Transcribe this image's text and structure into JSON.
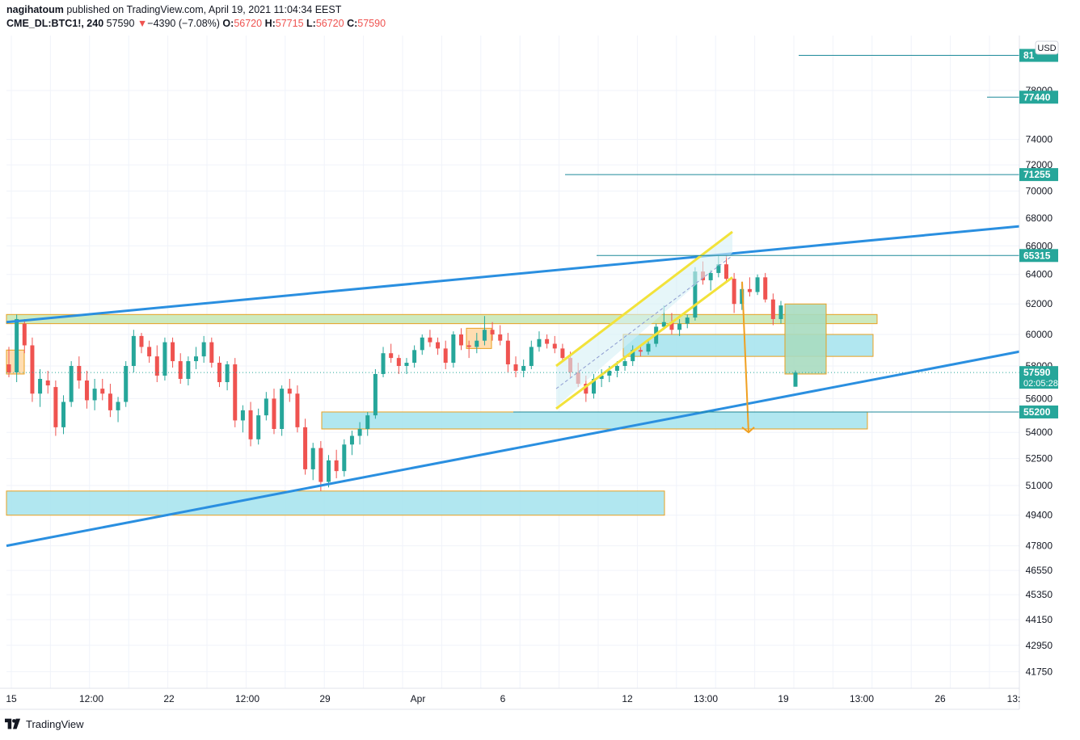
{
  "header": {
    "author": "nagihatoum",
    "published_text": "published on TradingView.com, April 19, 2021 11:04:34 EEST",
    "symbol": "CME_DL:BTC1!, 240",
    "last": "57590",
    "change_arrow": "▼",
    "change": "−4390 (−7.08%)",
    "o_label": "O:",
    "o_value": "56720",
    "h_label": "H:",
    "h_value": "57715",
    "l_label": "L:",
    "l_value": "56720",
    "c_label": "C:",
    "c_value": "57590"
  },
  "currency_label": "USD",
  "price_tags": [
    {
      "text": "81",
      "price": 81000,
      "color": "#26a69a"
    },
    {
      "text": "77440",
      "price": 77440,
      "color": "#26a69a"
    },
    {
      "text": "71255",
      "price": 71255,
      "color": "#26a69a"
    },
    {
      "text": "65315",
      "price": 65315,
      "color": "#26a69a"
    },
    {
      "text": "57590",
      "price": 57590,
      "color": "#26a69a",
      "sub": "02:05:28"
    },
    {
      "text": "55200",
      "price": 55200,
      "color": "#26a69a"
    }
  ],
  "footer": {
    "brand": "TradingView"
  },
  "colors": {
    "up": "#26a69a",
    "down": "#ef5350",
    "trend": "#2a8fe0",
    "zone": "#a8e4ee",
    "zone_border": "#e8a020",
    "channel": "#f2e23a"
  },
  "chart_data": {
    "type": "candlestick",
    "symbol": "CME_DL:BTC1!",
    "interval": "240",
    "y_axis_ticks": [
      41750,
      42950,
      44150,
      45350,
      46550,
      47800,
      49400,
      51000,
      52500,
      54000,
      56000,
      58000,
      60000,
      62000,
      64000,
      66000,
      68000,
      70000,
      72000,
      74000,
      78000
    ],
    "y_scale": "log",
    "ylim": [
      40800,
      83000
    ],
    "x_axis_ticks": [
      "15",
      "12:00",
      "22",
      "12:00",
      "29",
      "Apr",
      "6",
      "12",
      "13:00",
      "19",
      "13:00",
      "26",
      "13:"
    ],
    "horizontal_levels": [
      81000,
      77440,
      71255,
      65315,
      55200
    ],
    "last_price": 57590,
    "countdown": "02:05:28",
    "candles": [
      [
        58100,
        59200,
        57300,
        57600
      ],
      [
        57600,
        61300,
        57000,
        61000
      ],
      [
        60700,
        61000,
        58800,
        59300
      ],
      [
        59300,
        59800,
        55800,
        56300
      ],
      [
        56300,
        57800,
        55500,
        57200
      ],
      [
        57100,
        57700,
        56300,
        56800
      ],
      [
        56700,
        57100,
        53800,
        54300
      ],
      [
        54300,
        56200,
        53900,
        55800
      ],
      [
        55800,
        58300,
        55500,
        58000
      ],
      [
        58000,
        58600,
        56600,
        57100
      ],
      [
        57100,
        57700,
        55400,
        55900
      ],
      [
        55900,
        57200,
        55300,
        56600
      ],
      [
        56600,
        57200,
        55900,
        56300
      ],
      [
        56300,
        56900,
        54900,
        55300
      ],
      [
        55300,
        56100,
        54600,
        55800
      ],
      [
        55800,
        58300,
        55500,
        58000
      ],
      [
        58000,
        60300,
        57600,
        59900
      ],
      [
        59900,
        60100,
        58800,
        59200
      ],
      [
        59200,
        59600,
        58200,
        58600
      ],
      [
        58600,
        59300,
        57000,
        57400
      ],
      [
        57400,
        59800,
        57100,
        59500
      ],
      [
        59500,
        59800,
        57900,
        58300
      ],
      [
        58300,
        58800,
        56900,
        57200
      ],
      [
        57200,
        58600,
        56800,
        58300
      ],
      [
        58300,
        59200,
        57800,
        58600
      ],
      [
        58600,
        59900,
        58200,
        59500
      ],
      [
        59500,
        59800,
        57900,
        58200
      ],
      [
        58200,
        58600,
        56700,
        57000
      ],
      [
        57000,
        58300,
        56500,
        58100
      ],
      [
        58100,
        58500,
        54300,
        54700
      ],
      [
        54700,
        55600,
        54000,
        55300
      ],
      [
        55300,
        55800,
        53200,
        53600
      ],
      [
        53600,
        55400,
        53300,
        55000
      ],
      [
        55000,
        56400,
        54700,
        56000
      ],
      [
        56000,
        56600,
        53900,
        54200
      ],
      [
        54200,
        56800,
        53800,
        56600
      ],
      [
        56600,
        57200,
        55800,
        56300
      ],
      [
        56300,
        56800,
        54000,
        54300
      ],
      [
        54300,
        54800,
        51600,
        51900
      ],
      [
        51900,
        53400,
        51300,
        53100
      ],
      [
        53100,
        53500,
        50700,
        51200
      ],
      [
        51200,
        52700,
        50900,
        52400
      ],
      [
        52400,
        53000,
        51400,
        51800
      ],
      [
        51800,
        53600,
        51500,
        53300
      ],
      [
        53300,
        54100,
        52700,
        53800
      ],
      [
        53800,
        54600,
        53300,
        54200
      ],
      [
        54200,
        55200,
        53800,
        55000
      ],
      [
        55000,
        57800,
        54800,
        57500
      ],
      [
        57500,
        59200,
        57300,
        58800
      ],
      [
        58800,
        59400,
        58200,
        58500
      ],
      [
        58500,
        58700,
        57500,
        58000
      ],
      [
        58000,
        58500,
        57500,
        58200
      ],
      [
        58200,
        59300,
        57900,
        59000
      ],
      [
        59000,
        60000,
        58700,
        59800
      ],
      [
        59800,
        60300,
        59200,
        59500
      ],
      [
        59500,
        59800,
        58700,
        59100
      ],
      [
        59100,
        59600,
        57800,
        58200
      ],
      [
        58200,
        60200,
        57900,
        60000
      ],
      [
        60000,
        60400,
        59000,
        59300
      ],
      [
        59300,
        59600,
        58500,
        59200
      ],
      [
        59200,
        60100,
        58800,
        59600
      ],
      [
        59600,
        61200,
        59300,
        60300
      ],
      [
        60300,
        60800,
        59600,
        60000
      ],
      [
        60000,
        60600,
        59300,
        59600
      ],
      [
        59600,
        60100,
        57600,
        58100
      ],
      [
        58100,
        58600,
        57300,
        57700
      ],
      [
        57700,
        58400,
        57300,
        58000
      ],
      [
        58000,
        59600,
        57800,
        59200
      ],
      [
        59200,
        60200,
        58900,
        59700
      ],
      [
        59700,
        60000,
        59100,
        59400
      ],
      [
        59400,
        59900,
        58800,
        59100
      ],
      [
        59100,
        59400,
        58300,
        58500
      ],
      [
        58500,
        58900,
        57300,
        57600
      ],
      [
        57600,
        58200,
        56700,
        56900
      ],
      [
        56900,
        57400,
        55800,
        56300
      ],
      [
        56300,
        57500,
        56000,
        57200
      ],
      [
        57200,
        57800,
        56700,
        57400
      ],
      [
        57400,
        58000,
        57000,
        57700
      ],
      [
        57700,
        58300,
        57300,
        58000
      ],
      [
        58000,
        58600,
        57700,
        58300
      ],
      [
        58300,
        59300,
        58000,
        59000
      ],
      [
        59000,
        59300,
        58600,
        58900
      ],
      [
        58900,
        59600,
        58700,
        59400
      ],
      [
        59400,
        60700,
        59200,
        60500
      ],
      [
        60500,
        61900,
        60300,
        60800
      ],
      [
        60800,
        61400,
        60000,
        60300
      ],
      [
        60300,
        61000,
        59900,
        60700
      ],
      [
        60700,
        61300,
        60400,
        61100
      ],
      [
        61100,
        64500,
        60900,
        64200
      ],
      [
        64200,
        64900,
        63300,
        63600
      ],
      [
        63600,
        64300,
        62900,
        64100
      ],
      [
        64100,
        65400,
        63800,
        64700
      ],
      [
        64700,
        65300,
        63400,
        63700
      ],
      [
        63700,
        64100,
        61400,
        62000
      ],
      [
        62000,
        63400,
        61600,
        63000
      ],
      [
        63000,
        63800,
        62500,
        62800
      ],
      [
        62800,
        64000,
        62600,
        63800
      ],
      [
        63800,
        64100,
        62100,
        62300
      ],
      [
        62300,
        62700,
        60600,
        61000
      ],
      [
        61000,
        62200,
        60700,
        61900
      ],
      [
        56720,
        57715,
        56720,
        57590
      ]
    ]
  }
}
